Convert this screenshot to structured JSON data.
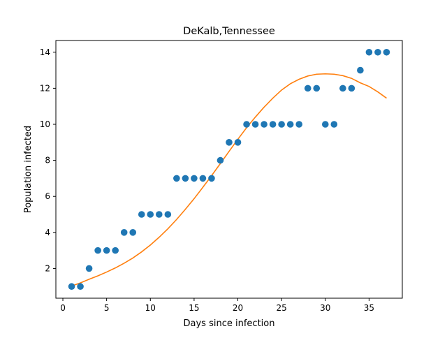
{
  "chart_data": {
    "type": "scatter",
    "title": "DeKalb,Tennessee",
    "xlabel": "Days since infection",
    "ylabel": "Population infected",
    "xlim": [
      -0.8,
      38.8
    ],
    "ylim": [
      0.35,
      14.65
    ],
    "xticks": [
      0,
      5,
      10,
      15,
      20,
      25,
      30,
      35
    ],
    "yticks": [
      2,
      4,
      6,
      8,
      10,
      12,
      14
    ],
    "grid": false,
    "legend": "none",
    "series": [
      {
        "kind": "scatter",
        "color": "#1f77b4",
        "x": [
          1,
          2,
          3,
          4,
          5,
          6,
          7,
          8,
          9,
          10,
          11,
          12,
          13,
          14,
          15,
          16,
          17,
          18,
          19,
          20,
          21,
          22,
          23,
          24,
          25,
          26,
          27,
          28,
          29,
          30,
          31,
          32,
          33,
          34,
          35,
          36,
          37
        ],
        "y": [
          1,
          1,
          2,
          3,
          3,
          3,
          4,
          4,
          5,
          5,
          5,
          5,
          7,
          7,
          7,
          7,
          7,
          8,
          9,
          9,
          10,
          10,
          10,
          10,
          10,
          10,
          10,
          12,
          12,
          10,
          10,
          12,
          12,
          13,
          14,
          14,
          14
        ]
      },
      {
        "kind": "line",
        "color": "#ff7f0e",
        "x": [
          1,
          2,
          3,
          4,
          5,
          6,
          7,
          8,
          9,
          10,
          11,
          12,
          13,
          14,
          15,
          16,
          17,
          18,
          19,
          20,
          21,
          22,
          23,
          24,
          25,
          26,
          27,
          28,
          29,
          30,
          31,
          32,
          33,
          34,
          35,
          36,
          37
        ],
        "y": [
          1.03,
          1.2,
          1.4,
          1.59,
          1.8,
          2.03,
          2.29,
          2.58,
          2.92,
          3.3,
          3.73,
          4.2,
          4.72,
          5.28,
          5.87,
          6.5,
          7.15,
          7.82,
          8.5,
          9.17,
          9.81,
          10.4,
          10.95,
          11.45,
          11.9,
          12.25,
          12.5,
          12.68,
          12.78,
          12.8,
          12.78,
          12.7,
          12.55,
          12.3,
          12.1,
          11.8,
          11.45
        ]
      }
    ]
  }
}
